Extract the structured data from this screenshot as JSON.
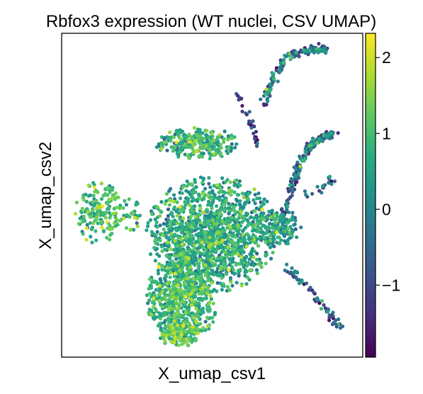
{
  "chart_data": {
    "type": "scatter",
    "title": "Rbfox3 expression (WT nuclei, CSV UMAP)",
    "xlabel": "X_umap_csv1",
    "ylabel": "X_umap_csv2",
    "xticks": "none",
    "yticks": "none",
    "grid": false,
    "colormap": "viridis",
    "colorbar": {
      "label": "",
      "ticks": [
        2,
        1,
        0,
        -1
      ],
      "tick_labels": [
        "2",
        "1",
        "0",
        "−1"
      ],
      "range": [
        -1.95,
        2.32
      ]
    },
    "clusters": [
      {
        "name": "left-island",
        "cx": 0.12,
        "cy": 0.55,
        "rx": 0.08,
        "ry": 0.1,
        "n": 170,
        "mean": 0.9,
        "sd": 0.5
      },
      {
        "name": "small-bridge",
        "cx": 0.23,
        "cy": 0.56,
        "rx": 0.04,
        "ry": 0.05,
        "n": 30,
        "mean": 0.8,
        "sd": 0.5
      },
      {
        "name": "main-body",
        "cx": 0.5,
        "cy": 0.62,
        "rx": 0.22,
        "ry": 0.18,
        "n": 1300,
        "mean": 0.5,
        "sd": 0.55
      },
      {
        "name": "lower-left-lobe",
        "cx": 0.4,
        "cy": 0.82,
        "rx": 0.12,
        "ry": 0.14,
        "n": 650,
        "mean": 0.7,
        "sd": 0.5
      },
      {
        "name": "bottom-tip",
        "cx": 0.39,
        "cy": 0.93,
        "rx": 0.07,
        "ry": 0.04,
        "n": 120,
        "mean": 1.0,
        "sd": 0.45
      },
      {
        "name": "top-arc",
        "cx": 0.45,
        "cy": 0.34,
        "rx": 0.14,
        "ry": 0.05,
        "n": 260,
        "mean": 0.6,
        "sd": 0.6
      },
      {
        "name": "right-lobe",
        "cx": 0.72,
        "cy": 0.6,
        "rx": 0.08,
        "ry": 0.06,
        "n": 150,
        "mean": 0.2,
        "sd": 0.6
      }
    ],
    "arms": [
      {
        "name": "upper-arm",
        "points": [
          [
            0.67,
            0.22
          ],
          [
            0.7,
            0.14
          ],
          [
            0.75,
            0.07
          ],
          [
            0.82,
            0.05
          ],
          [
            0.88,
            0.05
          ]
        ],
        "n": 150,
        "mean": -0.5,
        "sd": 0.8
      },
      {
        "name": "thin-branch",
        "points": [
          [
            0.58,
            0.19
          ],
          [
            0.62,
            0.25
          ],
          [
            0.65,
            0.35
          ]
        ],
        "n": 30,
        "mean": -1.2,
        "sd": 0.6
      },
      {
        "name": "right-arm",
        "points": [
          [
            0.73,
            0.58
          ],
          [
            0.78,
            0.43
          ],
          [
            0.82,
            0.35
          ],
          [
            0.87,
            0.32
          ],
          [
            0.9,
            0.31
          ]
        ],
        "n": 180,
        "mean": -0.6,
        "sd": 0.8
      },
      {
        "name": "side-spur",
        "points": [
          [
            0.81,
            0.5
          ],
          [
            0.87,
            0.48
          ],
          [
            0.9,
            0.45
          ]
        ],
        "n": 18,
        "mean": -0.3,
        "sd": 0.7
      },
      {
        "name": "lower-arm",
        "points": [
          [
            0.75,
            0.72
          ],
          [
            0.82,
            0.79
          ],
          [
            0.88,
            0.86
          ],
          [
            0.93,
            0.91
          ]
        ],
        "n": 60,
        "mean": -0.8,
        "sd": 0.8
      }
    ]
  }
}
